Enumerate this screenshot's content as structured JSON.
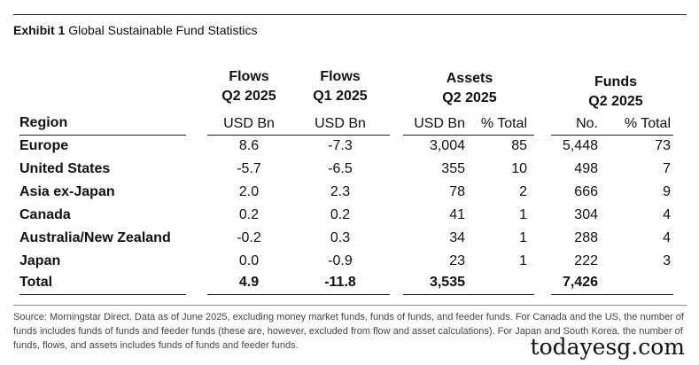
{
  "exhibit": {
    "number": "Exhibit 1",
    "title": "Global Sustainable Fund Statistics"
  },
  "headers": {
    "flows_q2": [
      "Flows",
      "Q2 2025"
    ],
    "flows_q1": [
      "Flows",
      "Q1 2025"
    ],
    "assets": [
      "Assets",
      "Q2 2025"
    ],
    "funds": [
      "Funds",
      "Q2 2025"
    ],
    "region": "Region",
    "sub": {
      "flows_q2": "USD Bn",
      "flows_q1": "USD Bn",
      "assets_usd": "USD Bn",
      "assets_pct": "% Total",
      "funds_no": "No.",
      "funds_pct": "% Total"
    }
  },
  "rows": [
    {
      "region": "Europe",
      "flows_q2": "8.6",
      "flows_q1": "-7.3",
      "assets_usd": "3,004",
      "assets_pct": "85",
      "funds_no": "5,448",
      "funds_pct": "73"
    },
    {
      "region": "United States",
      "flows_q2": "-5.7",
      "flows_q1": "-6.5",
      "assets_usd": "355",
      "assets_pct": "10",
      "funds_no": "498",
      "funds_pct": "7"
    },
    {
      "region": "Asia ex-Japan",
      "flows_q2": "2.0",
      "flows_q1": "2.3",
      "assets_usd": "78",
      "assets_pct": "2",
      "funds_no": "666",
      "funds_pct": "9"
    },
    {
      "region": "Canada",
      "flows_q2": "0.2",
      "flows_q1": "0.2",
      "assets_usd": "41",
      "assets_pct": "1",
      "funds_no": "304",
      "funds_pct": "4"
    },
    {
      "region": "Australia/New Zealand",
      "flows_q2": "-0.2",
      "flows_q1": "0.3",
      "assets_usd": "34",
      "assets_pct": "1",
      "funds_no": "288",
      "funds_pct": "4"
    },
    {
      "region": "Japan",
      "flows_q2": "0.0",
      "flows_q1": "-0.9",
      "assets_usd": "23",
      "assets_pct": "1",
      "funds_no": "222",
      "funds_pct": "3"
    }
  ],
  "total": {
    "region": "Total",
    "flows_q2": "4.9",
    "flows_q1": "-11.8",
    "assets_usd": "3,535",
    "funds_no": "7,426"
  },
  "source": "Source: Morningstar Direct. Data as of June 2025, excluding money market funds, funds of funds, and feeder funds. For Canada and the US, the number of funds includes funds of funds and feeder funds (these are, however, excluded from flow and asset calculations). For Japan and South Korea, the number of funds, flows, and assets includes funds of funds and feeder funds.",
  "watermark": "todayesg.com"
}
